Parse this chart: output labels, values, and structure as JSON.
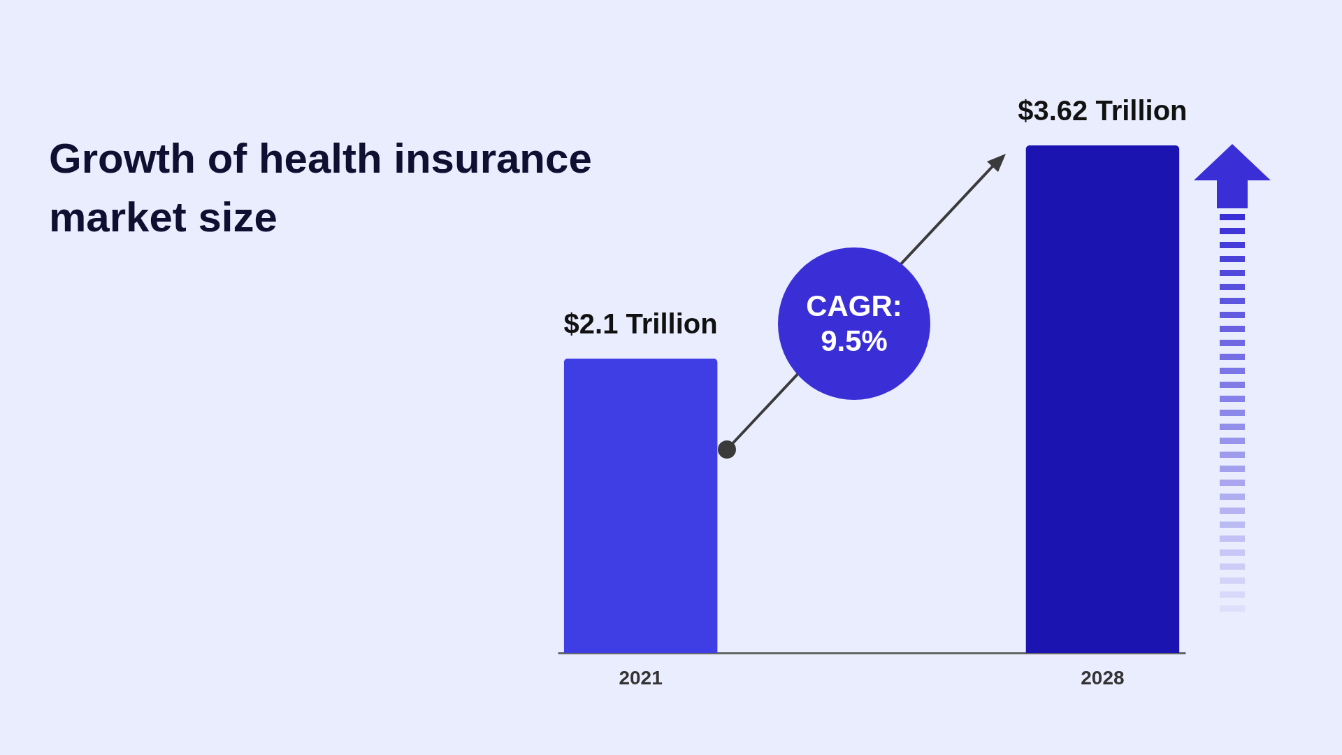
{
  "chart_data": {
    "type": "bar",
    "title": "Growth of health insurance market size",
    "categories": [
      "2021",
      "2028"
    ],
    "values": [
      2.1,
      3.62
    ],
    "colors": [
      "#3f3de4",
      "#1c14b0"
    ],
    "value_labels": [
      "$2.1 Trillion",
      "$3.62 Trillion"
    ],
    "annotations": [
      "CAGR: 9.5%"
    ],
    "grid": false,
    "legend": false
  }
}
